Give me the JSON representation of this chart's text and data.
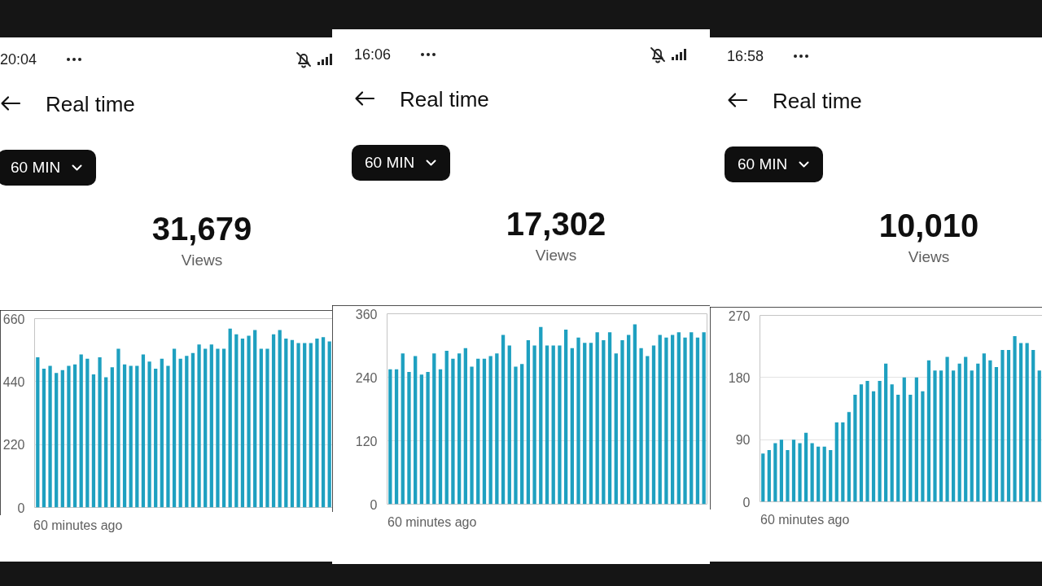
{
  "chart_data": [
    {
      "type": "bar",
      "title": "Real time",
      "subtitle": "31,679",
      "annotations": [
        "20:04",
        "60 MIN",
        "Views"
      ],
      "xlabel": "60 minutes ago",
      "categories": [
        null,
        null,
        null,
        null,
        null,
        null,
        null,
        null,
        null,
        null,
        null,
        null,
        null,
        null,
        null,
        null,
        null,
        null,
        null,
        null,
        null,
        null,
        null,
        null,
        null,
        null,
        null,
        null,
        null,
        null,
        null,
        null,
        null,
        null,
        null,
        null,
        null,
        null,
        null,
        null,
        null,
        null,
        null,
        null,
        null,
        null,
        null,
        null
      ],
      "values": [
        525,
        485,
        495,
        470,
        480,
        495,
        500,
        535,
        520,
        465,
        525,
        455,
        490,
        555,
        500,
        495,
        495,
        535,
        510,
        485,
        520,
        495,
        555,
        520,
        530,
        540,
        570,
        555,
        570,
        555,
        555,
        625,
        605,
        590,
        600,
        620,
        555,
        555,
        605,
        620,
        590,
        585,
        575,
        575,
        575,
        590,
        595,
        580
      ],
      "color": "#1ea0c0",
      "ylim": [
        0,
        660
      ],
      "yticks": [
        0,
        220,
        440,
        660
      ],
      "grid": "y",
      "tick_labels": "y"
    },
    {
      "type": "bar",
      "title": "Real time",
      "subtitle": "17,302",
      "annotations": [
        "16:06",
        "60 MIN",
        "Views"
      ],
      "xlabel": "60 minutes ago",
      "categories": [
        null,
        null,
        null,
        null,
        null,
        null,
        null,
        null,
        null,
        null,
        null,
        null,
        null,
        null,
        null,
        null,
        null,
        null,
        null,
        null,
        null,
        null,
        null,
        null,
        null,
        null,
        null,
        null,
        null,
        null,
        null,
        null,
        null,
        null,
        null,
        null,
        null,
        null,
        null,
        null,
        null,
        null,
        null,
        null,
        null,
        null,
        null,
        null,
        null,
        null,
        null
      ],
      "values": [
        255,
        255,
        285,
        250,
        280,
        245,
        250,
        285,
        255,
        290,
        275,
        285,
        295,
        260,
        275,
        275,
        280,
        285,
        320,
        300,
        260,
        265,
        310,
        300,
        335,
        300,
        300,
        300,
        330,
        295,
        315,
        305,
        305,
        325,
        310,
        325,
        285,
        310,
        320,
        340,
        295,
        280,
        300,
        320,
        315,
        320,
        325,
        315,
        325,
        315,
        325
      ],
      "color": "#1ea0c0",
      "ylim": [
        0,
        360
      ],
      "yticks": [
        0,
        120,
        240,
        360
      ],
      "grid": "y",
      "tick_labels": "y"
    },
    {
      "type": "bar",
      "title": "Real time",
      "subtitle": "10,010",
      "annotations": [
        "16:58",
        "60 MIN",
        "Views"
      ],
      "xlabel": "60 minutes ago",
      "categories": [
        null,
        null,
        null,
        null,
        null,
        null,
        null,
        null,
        null,
        null,
        null,
        null,
        null,
        null,
        null,
        null,
        null,
        null,
        null,
        null,
        null,
        null,
        null,
        null,
        null,
        null,
        null,
        null,
        null,
        null,
        null,
        null,
        null,
        null,
        null,
        null,
        null,
        null,
        null,
        null,
        null,
        null,
        null,
        null,
        null,
        null
      ],
      "values": [
        70,
        75,
        85,
        90,
        75,
        90,
        85,
        100,
        85,
        80,
        80,
        75,
        115,
        115,
        130,
        155,
        170,
        175,
        160,
        175,
        200,
        170,
        155,
        180,
        155,
        180,
        160,
        205,
        190,
        190,
        210,
        190,
        200,
        210,
        190,
        200,
        215,
        205,
        195,
        220,
        220,
        240,
        230,
        230,
        220,
        190
      ],
      "color": "#1ea0c0",
      "ylim": [
        0,
        270
      ],
      "yticks": [
        0,
        90,
        180,
        270
      ],
      "grid": "y",
      "tick_labels": "y"
    }
  ]
}
